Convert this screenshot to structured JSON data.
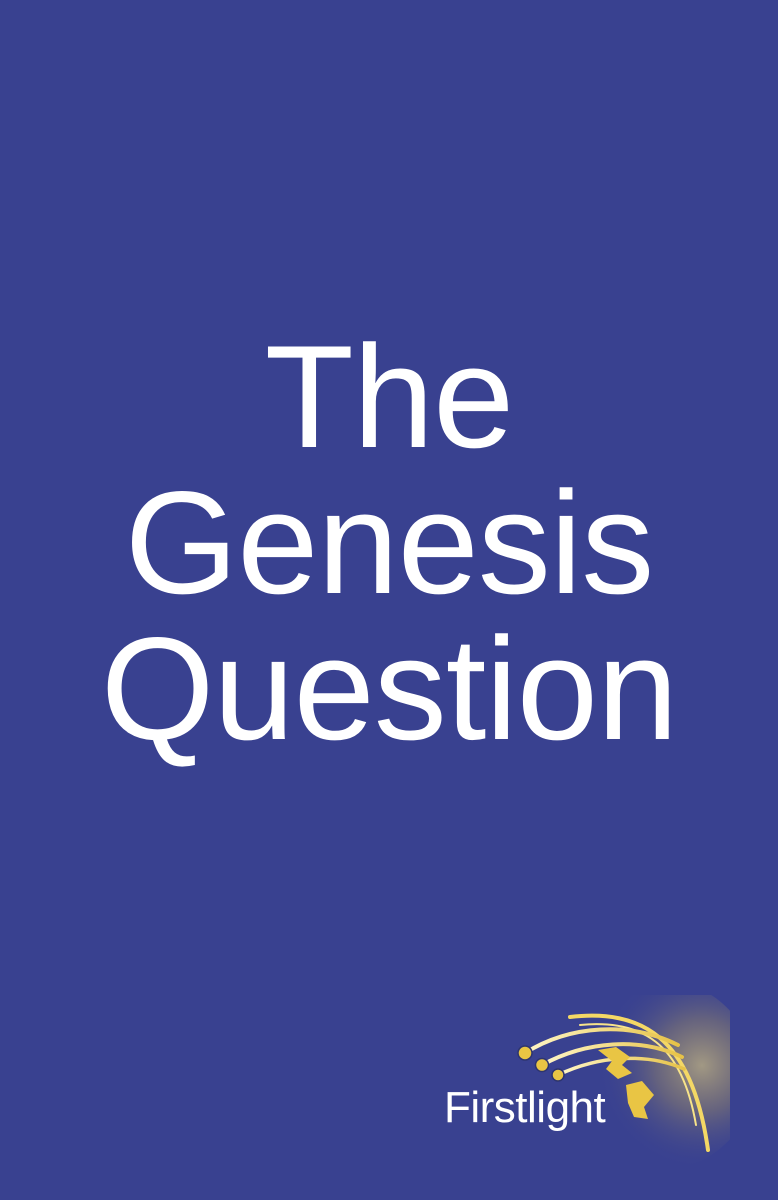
{
  "cover": {
    "background_color": "#394190",
    "title_lines": [
      "The",
      "Genesis",
      "Question"
    ]
  },
  "logo": {
    "wordmark": "Firstlight",
    "emblem_icon": "comet-rays-icon",
    "accent_color": "#f2d75a"
  }
}
